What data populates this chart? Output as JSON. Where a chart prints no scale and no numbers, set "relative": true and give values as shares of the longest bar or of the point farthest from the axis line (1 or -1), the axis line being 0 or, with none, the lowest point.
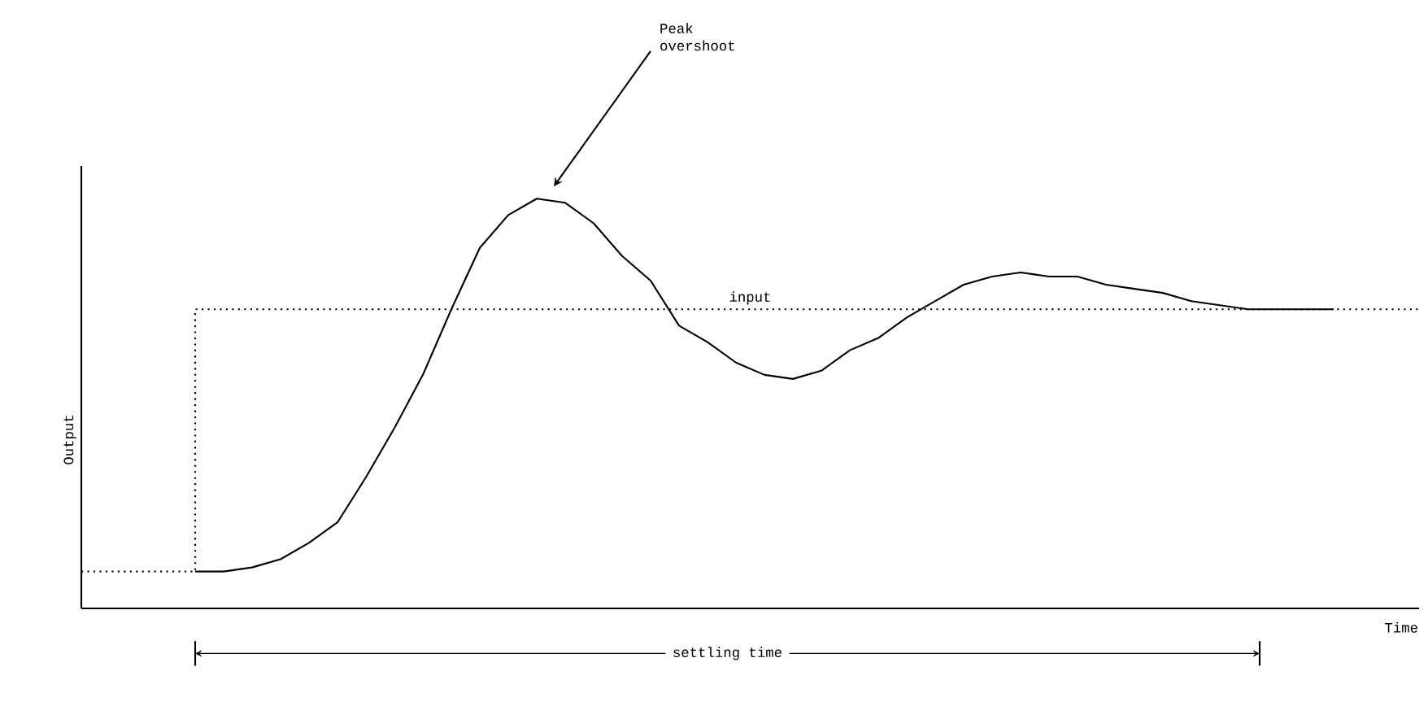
{
  "chart_data": {
    "type": "line",
    "relative": true,
    "xlabel": "Time",
    "ylabel": "Output",
    "categories": [
      null,
      null,
      null,
      null,
      null,
      null,
      null,
      null,
      null,
      null,
      null,
      null,
      null,
      null,
      null,
      null,
      null,
      null,
      null,
      null,
      null,
      null,
      null,
      null,
      null,
      null,
      null,
      null,
      null,
      null,
      null,
      null,
      null,
      null,
      null,
      null,
      null,
      null,
      null,
      null,
      null,
      null,
      null,
      null,
      null,
      null,
      null,
      null
    ],
    "series": [
      {
        "color": "#000000",
        "line_style": "solid",
        "values": [
          null,
          null,
          null,
          null,
          0.09,
          0.09,
          0.1,
          0.12,
          0.16,
          0.21,
          0.32,
          0.44,
          0.57,
          0.73,
          0.88,
          0.96,
          1.0,
          0.99,
          0.94,
          0.86,
          0.8,
          0.69,
          0.65,
          0.6,
          0.57,
          0.56,
          0.58,
          0.63,
          0.66,
          0.71,
          0.75,
          0.79,
          0.81,
          0.82,
          0.81,
          0.81,
          0.79,
          0.78,
          0.77,
          0.75,
          0.74,
          0.73,
          0.73,
          0.73,
          0.73,
          null,
          null,
          null
        ]
      },
      {
        "name": "input",
        "color": "#000000",
        "type": "step",
        "line_style": "dotted",
        "values": [
          0.09,
          0.09,
          0.09,
          0.09,
          0.73,
          0.73,
          0.73,
          0.73,
          0.73,
          0.73,
          0.73,
          0.73,
          0.73,
          0.73,
          0.73,
          0.73,
          0.73,
          0.73,
          0.73,
          0.73,
          0.73,
          0.73,
          0.73,
          0.73,
          0.73,
          0.73,
          0.73,
          0.73,
          0.73,
          0.73,
          0.73,
          0.73,
          0.73,
          0.73,
          0.73,
          0.73,
          0.73,
          0.73,
          0.73,
          0.73,
          0.73,
          0.73,
          0.73,
          0.73,
          0.73,
          0.73,
          0.73,
          0.73
        ]
      }
    ],
    "annotations": [
      "Peak overshoot",
      "settling time"
    ]
  }
}
